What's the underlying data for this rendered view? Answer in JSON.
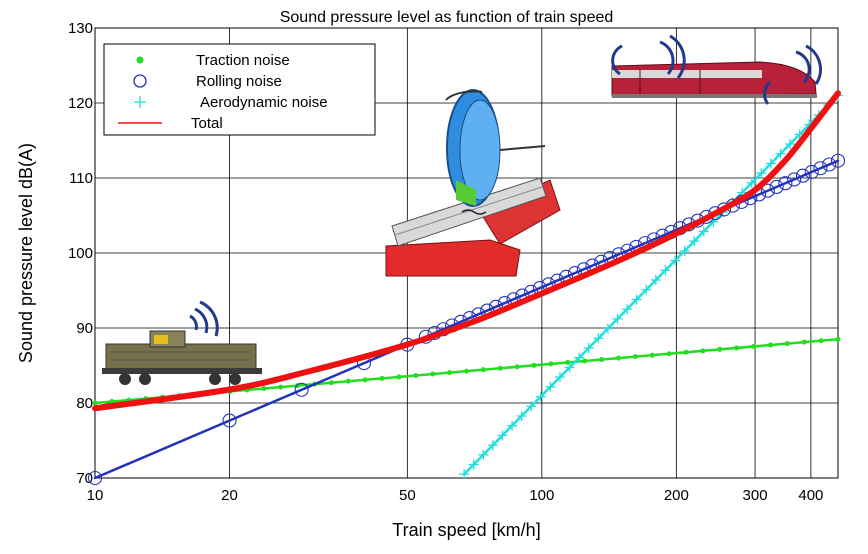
{
  "chart_data": {
    "type": "line",
    "title": "Sound pressure level as function of train speed",
    "xlabel": "Train speed [km/h]",
    "ylabel": "Sound pressure level dB(A)",
    "xscale": "log",
    "xlim": [
      10,
      460
    ],
    "ylim": [
      70,
      130
    ],
    "xticks": [
      10,
      20,
      50,
      100,
      200,
      300,
      400
    ],
    "xtick_labels": [
      "10",
      "20",
      "50",
      "100",
      "200",
      "300",
      "400"
    ],
    "yticks": [
      70,
      80,
      90,
      100,
      110,
      120,
      130
    ],
    "ytick_labels": [
      "70",
      "80",
      "90",
      "100",
      "110",
      "120",
      "130"
    ],
    "grid": true,
    "legend_position": "top-left",
    "series": [
      {
        "name": "Traction noise",
        "color": "#22dd22",
        "marker": "dot",
        "x": [
          10,
          460
        ],
        "y": [
          80.0,
          88.5
        ]
      },
      {
        "name": "Rolling noise",
        "color": "#2233bb",
        "marker": "circle",
        "x": [
          10,
          460
        ],
        "y": [
          70.0,
          112.3
        ]
      },
      {
        "name": "Aerodynamic noise",
        "color": "#22dddd",
        "marker": "plus",
        "x": [
          67,
          460
        ],
        "y": [
          70.5,
          121.0
        ]
      },
      {
        "name": "Total",
        "color": "#ee1111",
        "marker": "none",
        "x": [
          10,
          20,
          30,
          50,
          70,
          100,
          150,
          200,
          250,
          300,
          350,
          400,
          460
        ],
        "y": [
          79.3,
          81.8,
          84.2,
          87.8,
          90.8,
          94.6,
          99.1,
          102.6,
          105.6,
          108.4,
          112.3,
          116.6,
          121.3
        ]
      }
    ],
    "illustrations": [
      "locomotive",
      "wheel-on-rail",
      "high-speed-train"
    ]
  }
}
